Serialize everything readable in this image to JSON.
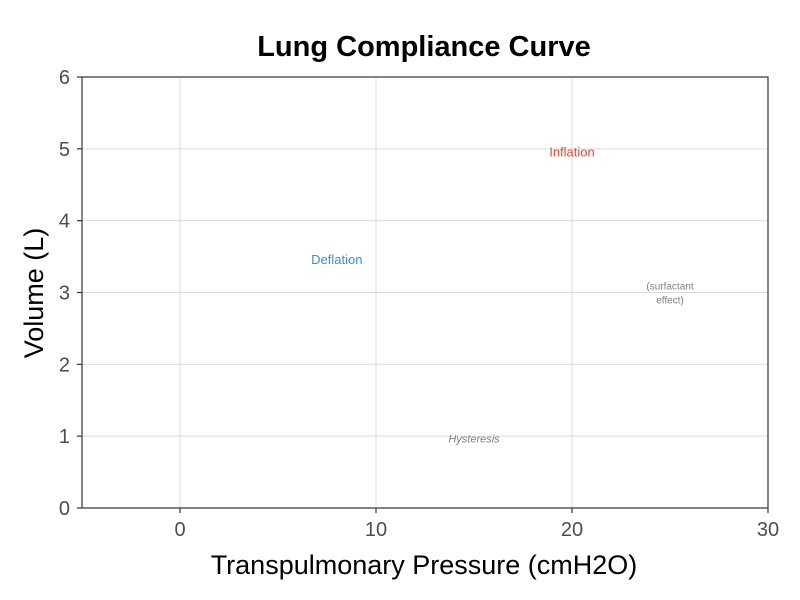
{
  "chart_data": {
    "type": "line",
    "title": "Lung Compliance Curve",
    "xlabel": "Transpulmonary Pressure (cmH2O)",
    "ylabel": "Volume (L)",
    "xlim": [
      -5,
      30
    ],
    "ylim": [
      0,
      6
    ],
    "x_ticks": [
      0,
      10,
      20,
      30
    ],
    "y_ticks": [
      0,
      1,
      2,
      3,
      4,
      5,
      6
    ],
    "grid": true,
    "legend": "none",
    "series": [],
    "annotations": [
      {
        "text": "Inflation",
        "x": 20,
        "y": 4.95,
        "color": "#e04a3c",
        "style": "normal"
      },
      {
        "text": "Deflation",
        "x": 8,
        "y": 3.45,
        "color": "#3b8fd0",
        "style": "normal"
      },
      {
        "lines": [
          "(surfactant",
          "effect)"
        ],
        "x": 25,
        "y": 3.0,
        "color": "#808080",
        "style": "small"
      },
      {
        "text": "Hysteresis",
        "x": 15,
        "y": 0.97,
        "color": "#808080",
        "style": "italic"
      }
    ]
  }
}
